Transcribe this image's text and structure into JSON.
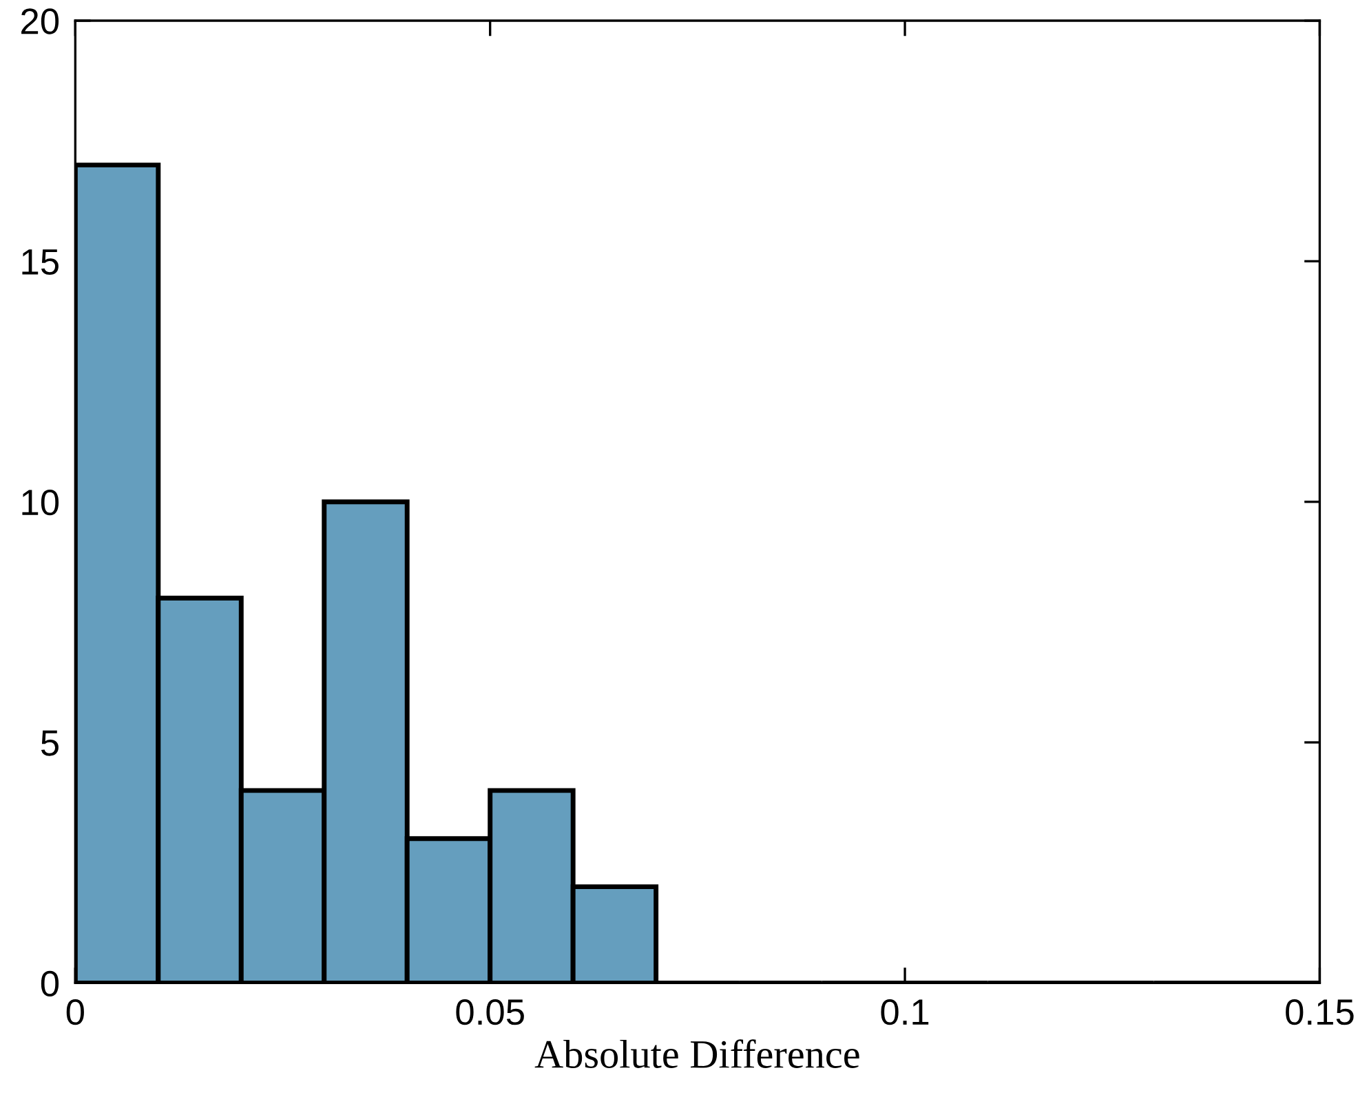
{
  "chart_data": {
    "type": "histogram",
    "xlabel": "Absolute Difference",
    "bins": [
      0,
      0.01,
      0.02,
      0.03,
      0.04,
      0.05,
      0.06,
      0.07,
      0.08,
      0.09,
      0.1,
      0.11,
      0.12,
      0.13,
      0.14,
      0.15
    ],
    "values": [
      17,
      8,
      4,
      10,
      3,
      4,
      2,
      0,
      0,
      0,
      0,
      0,
      0,
      0,
      0
    ],
    "color": "#659ebe",
    "xlim": [
      0,
      0.15
    ],
    "xticks": [
      0,
      0.05,
      0.1,
      0.15
    ],
    "ylim": [
      0,
      20
    ],
    "yticks": [
      0,
      5,
      10,
      15,
      20
    ],
    "grid": false,
    "legend": false
  }
}
